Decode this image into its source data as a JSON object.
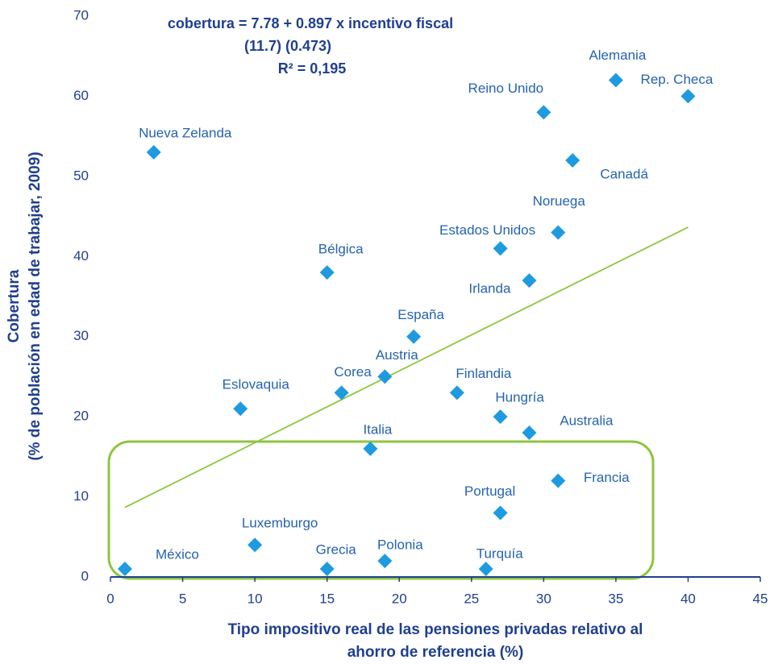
{
  "chart_data": {
    "type": "scatter",
    "equation": [
      "cobertura = 7.78 + 0.897 x incentivo fiscal",
      "(11.7)  (0.473)",
      "R² = 0,195"
    ],
    "x_label": [
      "Tipo impositivo real de las pensiones privadas relativo al",
      "ahorro de referencia (%)"
    ],
    "y_label": [
      "Cobertura",
      "(% de población en edad de trabajar, 2009)"
    ],
    "point_labels": [
      "México",
      "Nueva Zelanda",
      "Eslovaquia",
      "Luxemburgo",
      "Bélgica",
      "Grecia",
      "Corea",
      "Italia",
      "Austria",
      "Polonia",
      "España",
      "Finlandia",
      "Turquía",
      "Estados Unidos",
      "Hungría",
      "Portugal",
      "Irlanda",
      "Australia",
      "Reino Unido",
      "Noruega",
      "Francia",
      "Canadá",
      "Alemania",
      "Rep. Checa"
    ],
    "x": [
      1,
      3,
      9,
      10,
      15,
      15,
      16,
      18,
      19,
      19,
      21,
      24,
      26,
      27,
      27,
      27,
      29,
      29,
      30,
      31,
      31,
      32,
      35,
      40
    ],
    "values": [
      1,
      53,
      21,
      4,
      38,
      1,
      23,
      16,
      25,
      2,
      30,
      23,
      1,
      41,
      20,
      8,
      37,
      18,
      58,
      43,
      12,
      52,
      62,
      60
    ],
    "color": "#1e9be0",
    "trendline": {
      "intercept": 7.78,
      "slope": 0.897,
      "xrange": [
        1,
        40
      ],
      "color": "#8dc63f"
    },
    "xlim": [
      0,
      45
    ],
    "xticks": [
      0,
      5,
      10,
      15,
      20,
      25,
      30,
      35,
      40,
      45
    ],
    "ylim": [
      0,
      70
    ],
    "yticks": [
      0,
      10,
      20,
      30,
      40,
      50,
      60,
      70
    ],
    "grid": false
  }
}
